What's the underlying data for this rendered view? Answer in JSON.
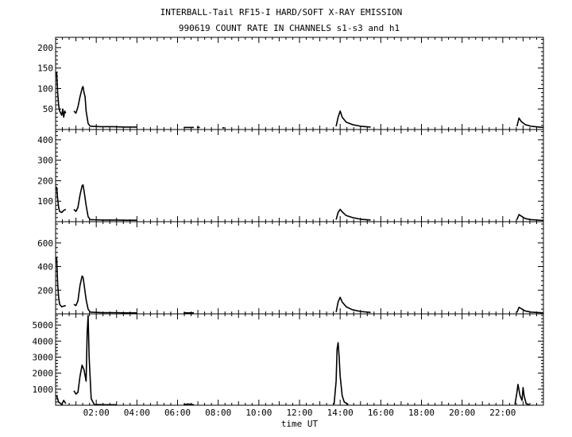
{
  "title_line1": "INTERBALL-Tail RF15-I HARD/SOFT X-RAY EMISSION",
  "title_line2": "990619  COUNT RATE IN CHANNELS s1-s3 and h1",
  "xlabel": "time UT",
  "chart_data": {
    "type": "line",
    "title": "INTERBALL-Tail RF15-I HARD/SOFT X-RAY EMISSION",
    "subtitle": "990619  COUNT RATE IN CHANNELS s1-s3 and h1",
    "xlabel": "time UT",
    "xlim": [
      0,
      24
    ],
    "x_tick_labels": [
      "02:00",
      "04:00",
      "06:00",
      "08:00",
      "10:00",
      "12:00",
      "14:00",
      "16:00",
      "18:00",
      "20:00",
      "22:00"
    ],
    "x_tick_values": [
      2,
      4,
      6,
      8,
      10,
      12,
      14,
      16,
      18,
      20,
      22
    ],
    "grid": false,
    "panels": [
      {
        "ylim": [
          0,
          225
        ],
        "yticks": [
          50,
          100,
          150,
          200
        ],
        "ytick_labels": [
          "50",
          "100",
          "150",
          "200"
        ],
        "segments": [
          {
            "x": [
              0.05,
              0.1,
              0.15,
              0.2,
              0.25,
              0.3,
              0.35,
              0.4,
              0.45,
              0.5
            ],
            "y": [
              140,
              90,
              60,
              45,
              40,
              35,
              50,
              30,
              45,
              40
            ]
          },
          {
            "x": [
              0.9,
              1.0,
              1.1,
              1.2,
              1.3,
              1.35,
              1.4,
              1.45,
              1.5,
              1.6,
              1.7
            ],
            "y": [
              45,
              40,
              55,
              80,
              100,
              105,
              90,
              80,
              45,
              15,
              8
            ]
          },
          {
            "x": [
              1.7,
              2.2,
              2.8,
              3.4,
              4.0
            ],
            "y": [
              8,
              7,
              7,
              6,
              6
            ]
          },
          {
            "x": [
              6.3,
              6.8
            ],
            "y": [
              5,
              5
            ]
          },
          {
            "x": [
              6.95,
              7.1
            ],
            "y": [
              5,
              5
            ]
          },
          {
            "x": [
              8.2,
              8.3
            ],
            "y": [
              4,
              4
            ]
          },
          {
            "x": [
              13.8,
              13.9,
              14.0,
              14.1,
              14.3,
              14.6,
              15.0,
              15.5
            ],
            "y": [
              8,
              30,
              45,
              30,
              18,
              12,
              8,
              6
            ]
          },
          {
            "x": [
              22.7,
              22.8,
              22.9,
              23.1,
              23.4,
              24.0
            ],
            "y": [
              8,
              28,
              20,
              12,
              8,
              5
            ]
          }
        ]
      },
      {
        "ylim": [
          0,
          450
        ],
        "yticks": [
          100,
          200,
          300,
          400
        ],
        "ytick_labels": [
          "100",
          "200",
          "300",
          "400"
        ],
        "segments": [
          {
            "x": [
              0.05,
              0.1,
              0.15,
              0.2,
              0.3,
              0.4,
              0.5
            ],
            "y": [
              170,
              110,
              70,
              50,
              45,
              55,
              60
            ]
          },
          {
            "x": [
              0.9,
              1.0,
              1.1,
              1.2,
              1.3,
              1.35,
              1.4,
              1.5,
              1.6,
              1.7
            ],
            "y": [
              60,
              50,
              70,
              130,
              175,
              180,
              150,
              80,
              25,
              10
            ]
          },
          {
            "x": [
              1.7,
              2.3,
              3.0,
              3.5,
              4.0
            ],
            "y": [
              10,
              8,
              8,
              7,
              7
            ]
          },
          {
            "x": [
              13.8,
              13.9,
              14.0,
              14.1,
              14.3,
              14.6,
              15.0,
              15.5
            ],
            "y": [
              10,
              45,
              60,
              48,
              30,
              20,
              12,
              8
            ]
          },
          {
            "x": [
              22.7,
              22.8,
              22.9,
              23.1,
              23.4,
              24.0
            ],
            "y": [
              10,
              35,
              28,
              15,
              10,
              6
            ]
          }
        ]
      },
      {
        "ylim": [
          0,
          780
        ],
        "yticks": [
          200,
          400,
          600
        ],
        "ytick_labels": [
          "200",
          "400",
          "600"
        ],
        "segments": [
          {
            "x": [
              0.05,
              0.1,
              0.15,
              0.2,
              0.3,
              0.4,
              0.5
            ],
            "y": [
              480,
              250,
              140,
              80,
              60,
              65,
              70
            ]
          },
          {
            "x": [
              0.9,
              1.0,
              1.1,
              1.2,
              1.3,
              1.35,
              1.4,
              1.5,
              1.6,
              1.7
            ],
            "y": [
              80,
              70,
              110,
              240,
              320,
              310,
              250,
              120,
              40,
              15
            ]
          },
          {
            "x": [
              1.7,
              2.3,
              3.0,
              3.5,
              4.0
            ],
            "y": [
              15,
              10,
              10,
              8,
              8
            ]
          },
          {
            "x": [
              6.3,
              6.8
            ],
            "y": [
              8,
              8
            ]
          },
          {
            "x": [
              13.8,
              13.9,
              14.0,
              14.1,
              14.3,
              14.6,
              15.0,
              15.5
            ],
            "y": [
              15,
              100,
              140,
              100,
              60,
              35,
              20,
              12
            ]
          },
          {
            "x": [
              22.7,
              22.8,
              22.9,
              23.1,
              23.4,
              24.0
            ],
            "y": [
              12,
              55,
              45,
              25,
              15,
              8
            ]
          }
        ]
      },
      {
        "ylim": [
          0,
          5700
        ],
        "yticks": [
          1000,
          2000,
          3000,
          4000,
          5000
        ],
        "ytick_labels": [
          "1000",
          "2000",
          "3000",
          "4000",
          "5000"
        ],
        "segments": [
          {
            "x": [
              0.05,
              0.15,
              0.3,
              0.4,
              0.5
            ],
            "y": [
              600,
              200,
              50,
              300,
              100
            ]
          },
          {
            "x": [
              0.9,
              1.0,
              1.1,
              1.2,
              1.3,
              1.4,
              1.5,
              1.55,
              1.6,
              1.65,
              1.75,
              1.9
            ],
            "y": [
              900,
              700,
              800,
              1800,
              2500,
              2200,
              1500,
              4500,
              5600,
              3000,
              400,
              50
            ]
          },
          {
            "x": [
              1.9,
              2.5,
              3.0
            ],
            "y": [
              40,
              30,
              30
            ]
          },
          {
            "x": [
              6.3,
              6.5,
              6.8
            ],
            "y": [
              30,
              80,
              30
            ]
          },
          {
            "x": [
              13.7,
              13.8,
              13.85,
              13.9,
              13.95,
              14.0,
              14.1,
              14.2,
              14.4
            ],
            "y": [
              50,
              1500,
              3500,
              3900,
              3000,
              1800,
              600,
              200,
              50
            ]
          },
          {
            "x": [
              22.6,
              22.7,
              22.75,
              22.85,
              22.95,
              23.0,
              23.05,
              23.15,
              23.3
            ],
            "y": [
              50,
              800,
              1300,
              600,
              300,
              1100,
              600,
              100,
              30
            ]
          }
        ]
      }
    ]
  }
}
